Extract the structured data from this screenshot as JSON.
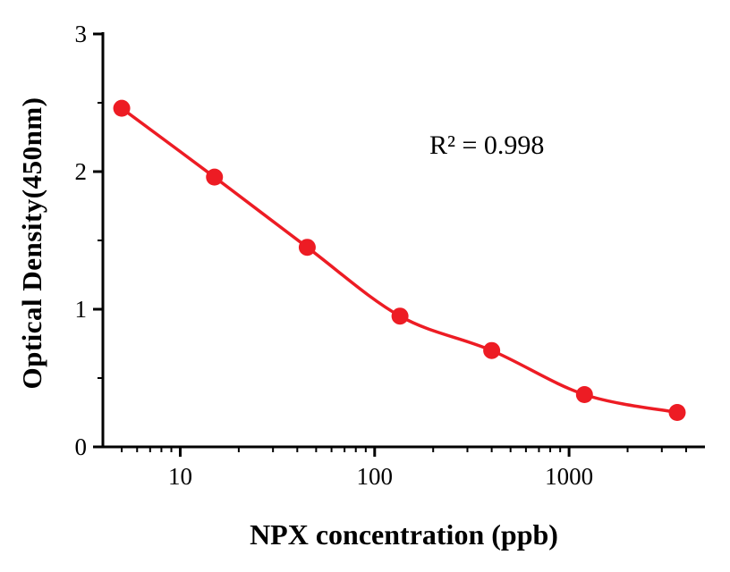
{
  "chart_data": {
    "type": "scatter",
    "title": "",
    "xlabel": "NPX concentration (ppb)",
    "ylabel": "Optical Density(450nm)",
    "annotation": "R² = 0.998",
    "xscale": "log",
    "xlim": [
      4,
      5000
    ],
    "ylim": [
      0,
      3
    ],
    "xticks": [
      10,
      100,
      1000
    ],
    "yticks": [
      0,
      1,
      2,
      3
    ],
    "y_minor_ticks": [
      0.5,
      1.5,
      2.5
    ],
    "x": [
      5,
      15,
      45,
      135,
      400,
      1200,
      3600
    ],
    "y": [
      2.46,
      1.96,
      1.45,
      0.95,
      0.7,
      0.38,
      0.25
    ],
    "legend": [],
    "grid": false,
    "colors": {
      "series": "#ed1c24",
      "axis": "#000000",
      "background": "#ffffff"
    }
  }
}
